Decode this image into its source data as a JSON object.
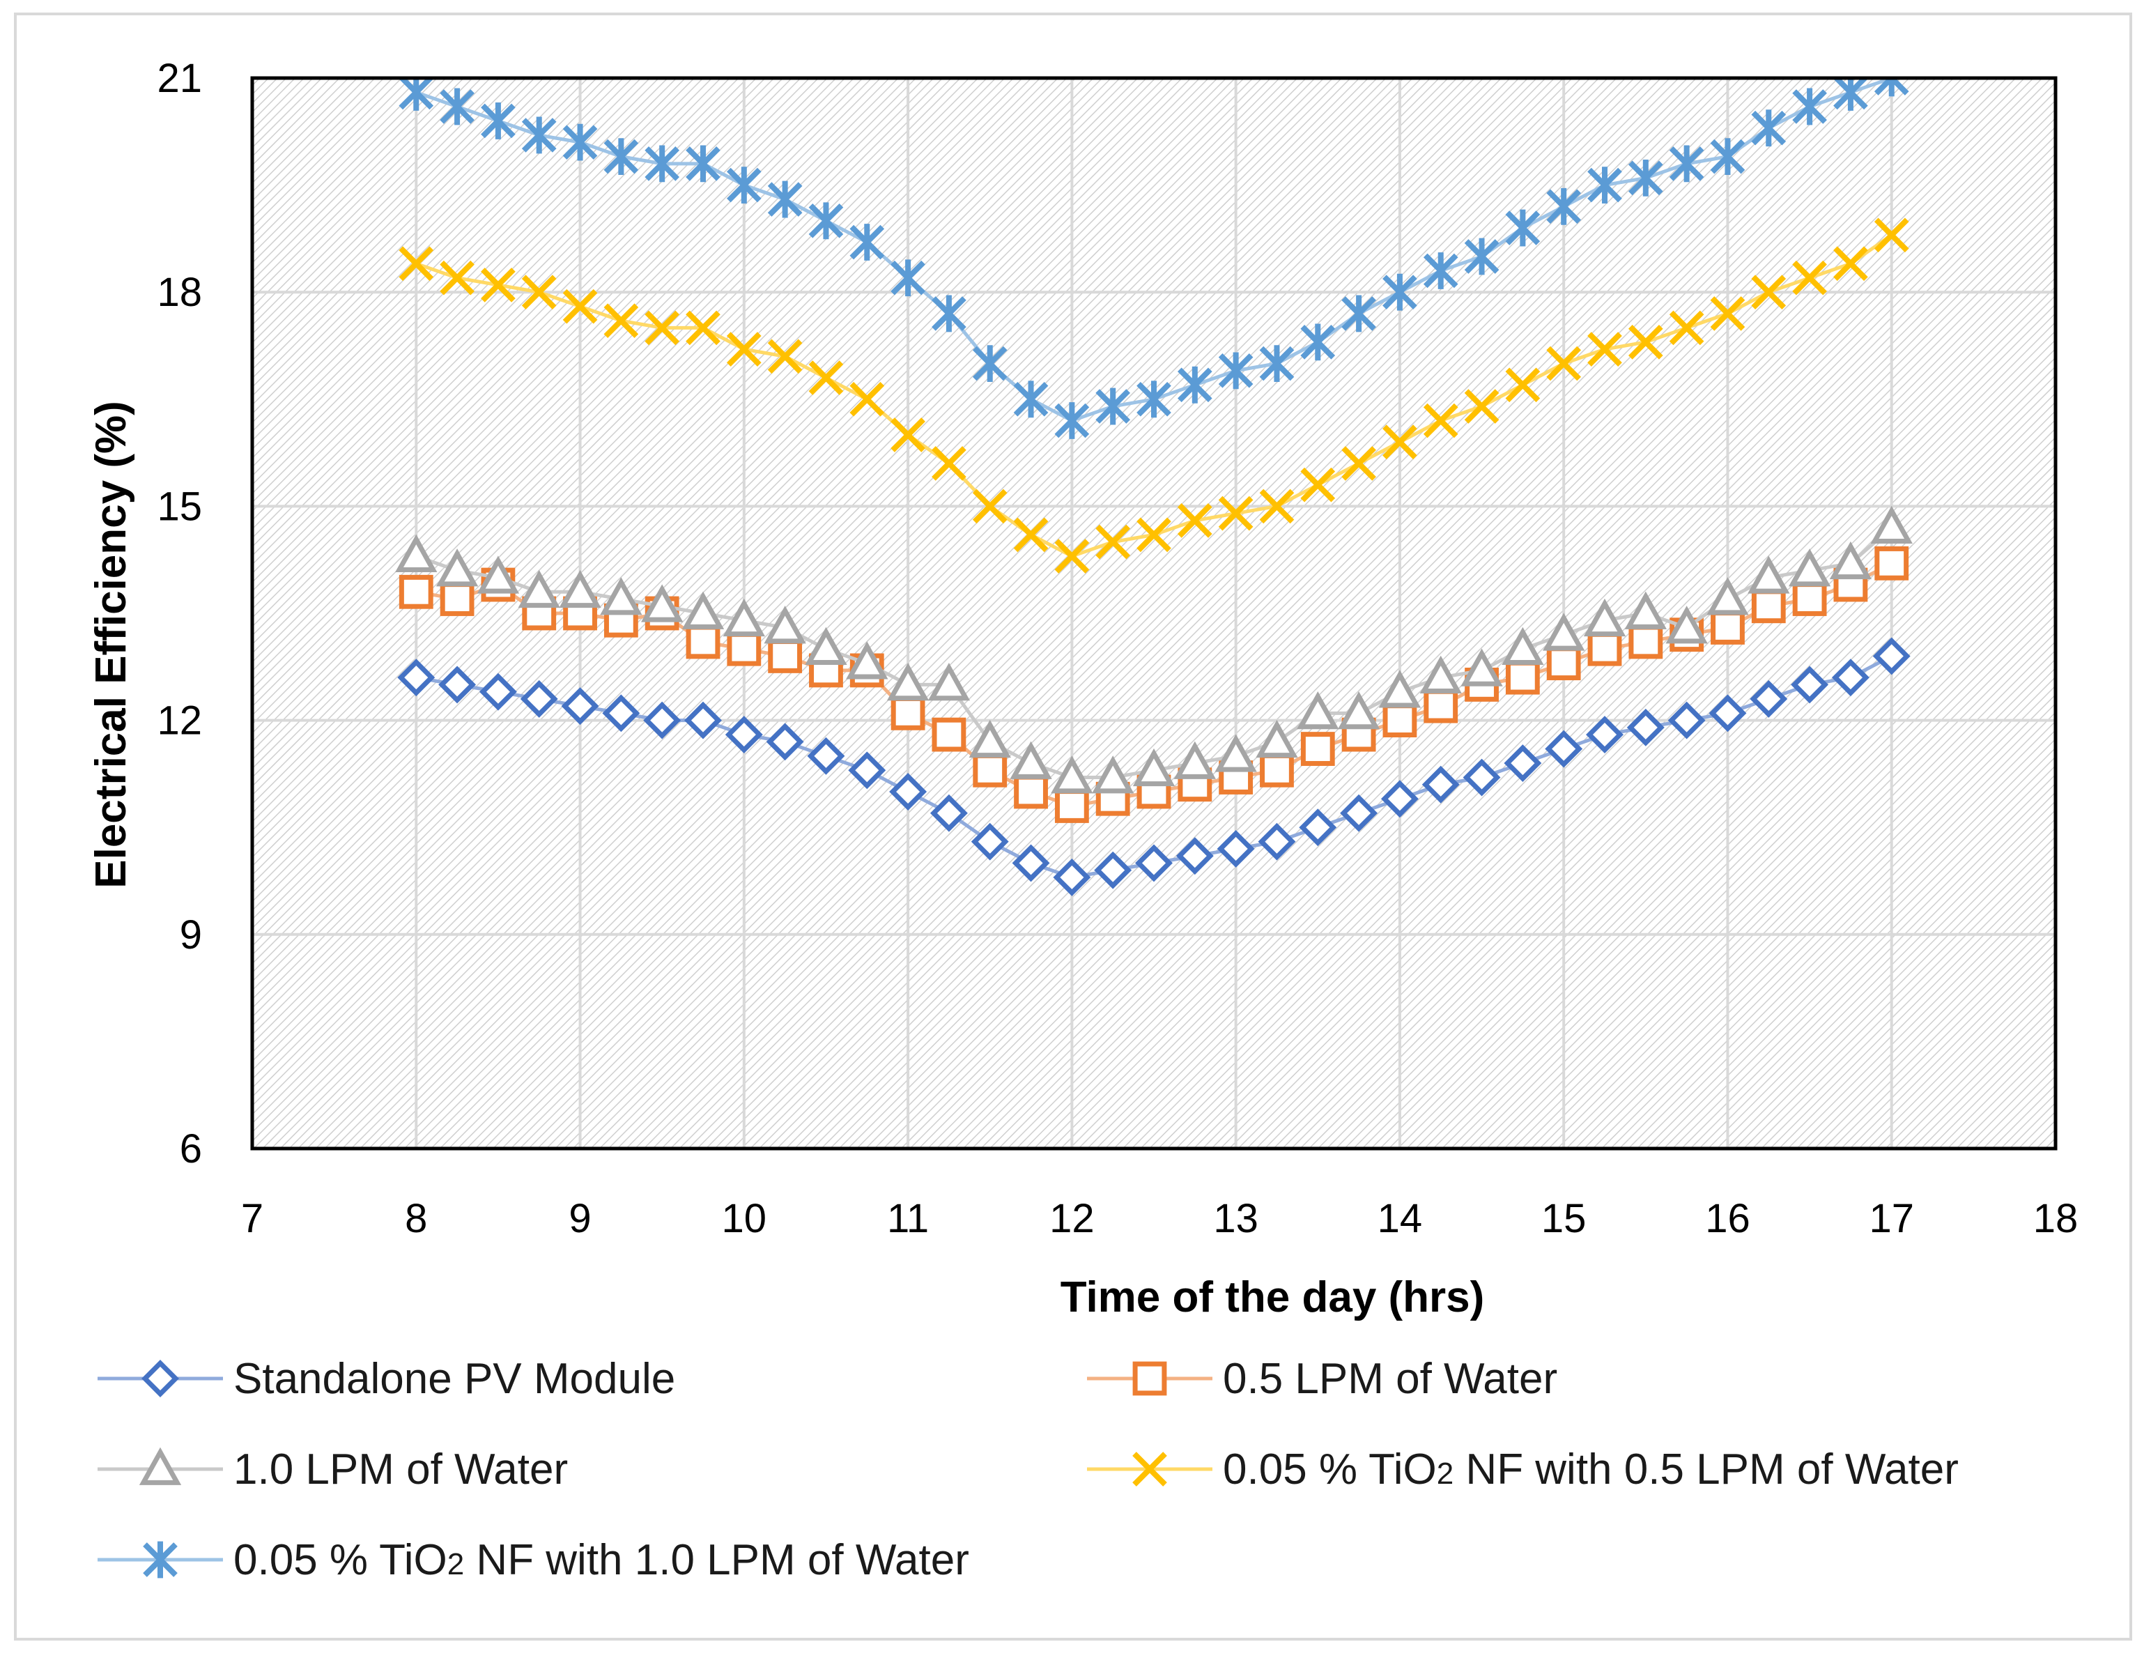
{
  "chart_data": {
    "type": "line",
    "title": "",
    "xlabel": "Time of the day (hrs)",
    "ylabel": "Electrical Efficiency (%)",
    "xlim": [
      7,
      18
    ],
    "ylim": [
      6,
      21
    ],
    "xticks": [
      "7",
      "8",
      "9",
      "10",
      "11",
      "12",
      "13",
      "14",
      "15",
      "16",
      "17",
      "18"
    ],
    "yticks": [
      "6",
      "9",
      "12",
      "15",
      "18",
      "21"
    ],
    "grid": true,
    "legend_position": "bottom",
    "x": [
      8,
      8.25,
      8.5,
      8.75,
      9,
      9.25,
      9.5,
      9.75,
      10,
      10.25,
      10.5,
      10.75,
      11,
      11.25,
      11.5,
      11.75,
      12,
      12.25,
      12.5,
      12.75,
      13,
      13.25,
      13.5,
      13.75,
      14,
      14.25,
      14.5,
      14.75,
      15,
      15.25,
      15.5,
      15.75,
      16,
      16.25,
      16.5,
      16.75,
      17
    ],
    "series": [
      {
        "name": "Standalone PV Module",
        "marker": "diamond",
        "color": "#4472C4",
        "line_color": "#8FAADC",
        "values": [
          12.6,
          12.5,
          12.4,
          12.3,
          12.2,
          12.1,
          12.0,
          12.0,
          11.8,
          11.7,
          11.5,
          11.3,
          11.0,
          10.7,
          10.3,
          10.0,
          9.8,
          9.9,
          10.0,
          10.1,
          10.2,
          10.3,
          10.5,
          10.7,
          10.9,
          11.1,
          11.2,
          11.4,
          11.6,
          11.8,
          11.9,
          12.0,
          12.1,
          12.3,
          12.5,
          12.6,
          12.9
        ]
      },
      {
        "name": "0.5 LPM of Water",
        "marker": "square",
        "color": "#ED7D31",
        "line_color": "#F4B183",
        "values": [
          13.8,
          13.7,
          13.9,
          13.5,
          13.5,
          13.4,
          13.5,
          13.1,
          13.0,
          12.9,
          12.7,
          12.7,
          12.1,
          11.8,
          11.3,
          11.0,
          10.8,
          10.9,
          11.0,
          11.1,
          11.2,
          11.3,
          11.6,
          11.8,
          12.0,
          12.2,
          12.5,
          12.6,
          12.8,
          13.0,
          13.1,
          13.2,
          13.3,
          13.6,
          13.7,
          13.9,
          14.2
        ]
      },
      {
        "name": "1.0 LPM of Water",
        "marker": "triangle",
        "color": "#A5A5A5",
        "line_color": "#C9C9C9",
        "values": [
          14.3,
          14.1,
          14.0,
          13.8,
          13.8,
          13.7,
          13.6,
          13.5,
          13.4,
          13.3,
          13.0,
          12.8,
          12.5,
          12.5,
          11.7,
          11.4,
          11.2,
          11.2,
          11.3,
          11.4,
          11.5,
          11.7,
          12.1,
          12.1,
          12.4,
          12.6,
          12.7,
          13.0,
          13.2,
          13.4,
          13.5,
          13.3,
          13.7,
          14.0,
          14.1,
          14.2,
          14.7
        ]
      },
      {
        "name": "0.05 % TiO₂ NF with 0.5 LPM of Water",
        "marker": "x",
        "color": "#FFC000",
        "line_color": "#FFD966",
        "values": [
          18.4,
          18.2,
          18.1,
          18.0,
          17.8,
          17.6,
          17.5,
          17.5,
          17.2,
          17.1,
          16.8,
          16.5,
          16.0,
          15.6,
          15.0,
          14.6,
          14.3,
          14.5,
          14.6,
          14.8,
          14.9,
          15.0,
          15.3,
          15.6,
          15.9,
          16.2,
          16.4,
          16.7,
          17.0,
          17.2,
          17.3,
          17.5,
          17.7,
          18.0,
          18.2,
          18.4,
          18.8
        ]
      },
      {
        "name": "0.05 % TiO₂ NF with 1.0 LPM of Water",
        "marker": "star",
        "color": "#5B9BD5",
        "line_color": "#9DC3E6",
        "values": [
          20.8,
          20.6,
          20.4,
          20.2,
          20.1,
          19.9,
          19.8,
          19.8,
          19.5,
          19.3,
          19.0,
          18.7,
          18.2,
          17.7,
          17.0,
          16.5,
          16.2,
          16.4,
          16.5,
          16.7,
          16.9,
          17.0,
          17.3,
          17.7,
          18.0,
          18.3,
          18.5,
          18.9,
          19.2,
          19.5,
          19.6,
          19.8,
          19.9,
          20.3,
          20.6,
          20.8,
          21.0
        ]
      }
    ],
    "legend": [
      {
        "text": "Standalone PV Module"
      },
      {
        "text": "0.5 LPM of Water"
      },
      {
        "text": "1.0 LPM of Water"
      },
      {
        "text": "0.05 % TiO",
        "sub": "2",
        "rest": " NF with 0.5 LPM of Water"
      },
      {
        "text": "0.05 % TiO",
        "sub": "2",
        "rest": " NF with 1.0 LPM of Water"
      }
    ]
  }
}
